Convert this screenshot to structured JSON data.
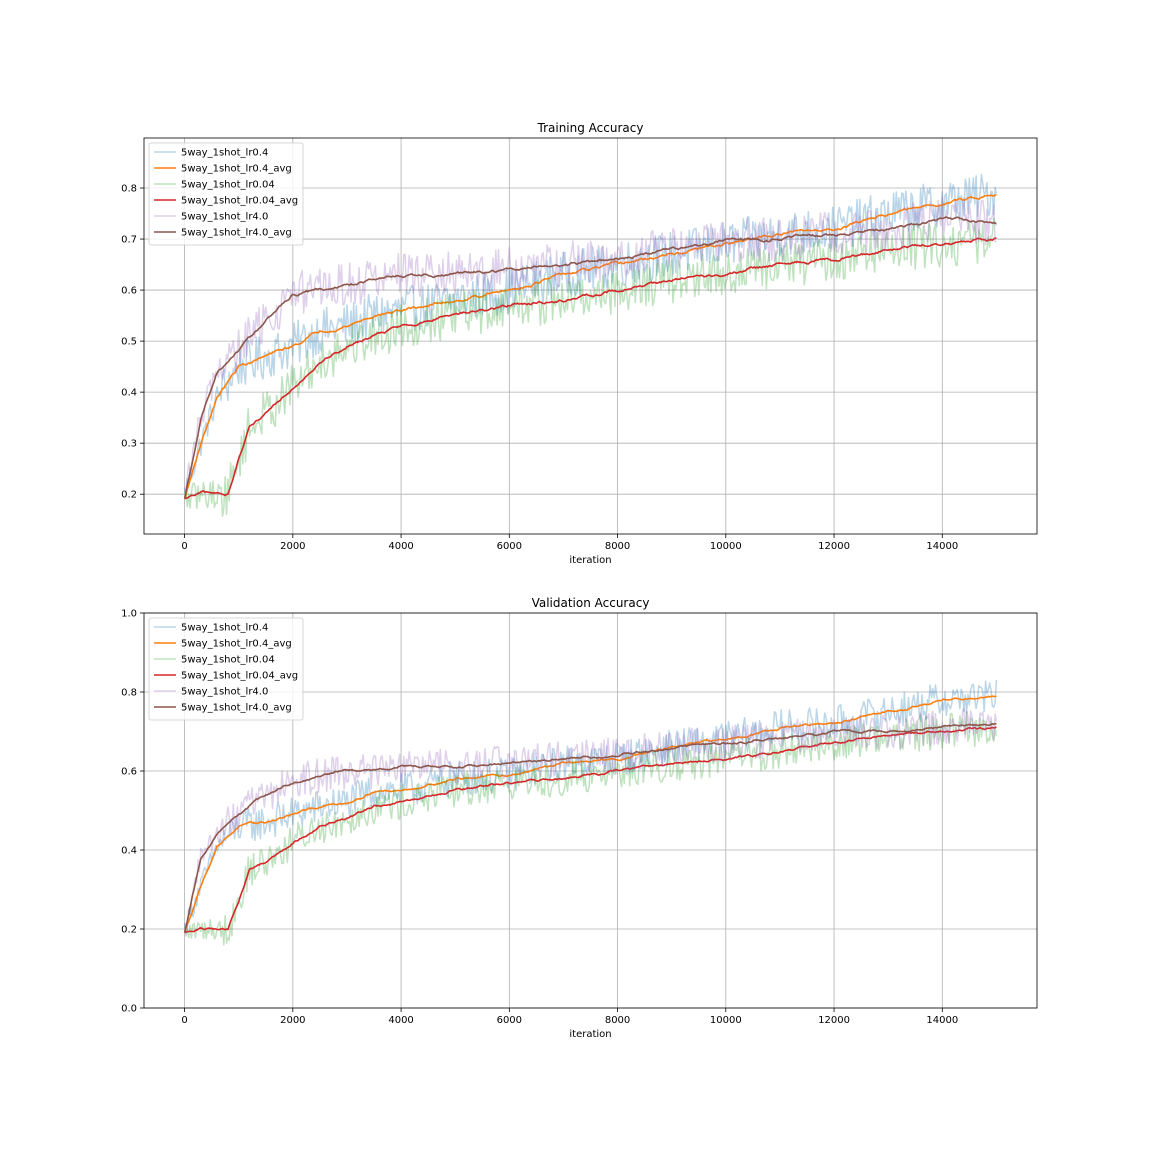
{
  "colors": {
    "lr0.4": "#1f77b4",
    "lr0.4_avg": "#ff7f0e",
    "lr0.04": "#2ca02c",
    "lr0.04_avg": "#d62728",
    "lr4.0": "#9467bd",
    "lr4.0_avg": "#8c564b"
  },
  "chart_data": [
    {
      "type": "line",
      "title": "Training Accuracy",
      "xlabel": "iteration",
      "ylabel": "",
      "xlim": [
        -750,
        15750
      ],
      "ylim": [
        0.122,
        0.898
      ],
      "xticks": [
        0,
        2000,
        4000,
        6000,
        8000,
        10000,
        12000,
        14000
      ],
      "xtick_labels": [
        "0",
        "2000",
        "4000",
        "6000",
        "8000",
        "10000",
        "12000",
        "14000"
      ],
      "yticks": [
        0.2,
        0.3,
        0.4,
        0.5,
        0.6,
        0.7,
        0.8
      ],
      "ytick_labels": [
        "0.2",
        "0.3",
        "0.4",
        "0.5",
        "0.6",
        "0.7",
        "0.8"
      ],
      "grid": true,
      "legend_position": "top-left",
      "series": [
        {
          "name": "5way_1shot_lr0.4",
          "color_key": "lr0.4",
          "alpha": 0.3,
          "noise": 0.045,
          "x": [
            0,
            300,
            600,
            1000,
            1500,
            2000,
            2500,
            3000,
            3500,
            4000,
            5000,
            6000,
            7000,
            8000,
            9000,
            10000,
            11000,
            12000,
            13000,
            14000,
            15000
          ],
          "y": [
            0.2,
            0.3,
            0.39,
            0.45,
            0.47,
            0.49,
            0.52,
            0.53,
            0.55,
            0.56,
            0.58,
            0.6,
            0.63,
            0.65,
            0.67,
            0.69,
            0.71,
            0.72,
            0.75,
            0.77,
            0.79
          ]
        },
        {
          "name": "5way_1shot_lr0.4_avg",
          "color_key": "lr0.4_avg",
          "alpha": 1.0,
          "noise": 0.006,
          "x": [
            0,
            300,
            600,
            1000,
            1500,
            2000,
            2500,
            3000,
            3500,
            4000,
            5000,
            6000,
            7000,
            8000,
            9000,
            10000,
            11000,
            12000,
            13000,
            14000,
            15000
          ],
          "y": [
            0.19,
            0.3,
            0.39,
            0.45,
            0.47,
            0.49,
            0.52,
            0.53,
            0.55,
            0.56,
            0.58,
            0.6,
            0.63,
            0.65,
            0.67,
            0.69,
            0.71,
            0.72,
            0.75,
            0.77,
            0.79
          ]
        },
        {
          "name": "5way_1shot_lr0.04",
          "color_key": "lr0.04",
          "alpha": 0.3,
          "noise": 0.045,
          "x": [
            0,
            300,
            600,
            800,
            1000,
            1200,
            1500,
            2000,
            2500,
            3000,
            3500,
            4000,
            5000,
            6000,
            7000,
            8000,
            9000,
            10000,
            11000,
            12000,
            13000,
            14000,
            15000
          ],
          "y": [
            0.19,
            0.2,
            0.2,
            0.2,
            0.27,
            0.33,
            0.36,
            0.41,
            0.46,
            0.49,
            0.51,
            0.53,
            0.55,
            0.57,
            0.58,
            0.6,
            0.62,
            0.63,
            0.65,
            0.66,
            0.68,
            0.69,
            0.7
          ]
        },
        {
          "name": "5way_1shot_lr0.04_avg",
          "color_key": "lr0.04_avg",
          "alpha": 1.0,
          "noise": 0.006,
          "x": [
            0,
            300,
            600,
            800,
            1000,
            1200,
            1500,
            2000,
            2500,
            3000,
            3500,
            4000,
            5000,
            6000,
            7000,
            8000,
            9000,
            10000,
            11000,
            12000,
            13000,
            14000,
            15000
          ],
          "y": [
            0.19,
            0.2,
            0.2,
            0.2,
            0.27,
            0.33,
            0.36,
            0.41,
            0.46,
            0.49,
            0.51,
            0.53,
            0.55,
            0.57,
            0.58,
            0.6,
            0.62,
            0.63,
            0.65,
            0.66,
            0.68,
            0.69,
            0.7
          ]
        },
        {
          "name": "5way_1shot_lr4.0",
          "color_key": "lr4.0",
          "alpha": 0.3,
          "noise": 0.045,
          "x": [
            0,
            300,
            600,
            1000,
            1500,
            2000,
            2500,
            3000,
            3500,
            4000,
            5000,
            6000,
            7000,
            8000,
            9000,
            10000,
            11000,
            12000,
            13000,
            14000,
            15000
          ],
          "y": [
            0.2,
            0.35,
            0.44,
            0.48,
            0.54,
            0.59,
            0.6,
            0.61,
            0.62,
            0.63,
            0.63,
            0.64,
            0.65,
            0.66,
            0.68,
            0.7,
            0.7,
            0.71,
            0.72,
            0.74,
            0.73
          ]
        },
        {
          "name": "5way_1shot_lr4.0_avg",
          "color_key": "lr4.0_avg",
          "alpha": 1.0,
          "noise": 0.006,
          "x": [
            0,
            300,
            600,
            1000,
            1500,
            2000,
            2500,
            3000,
            3500,
            4000,
            5000,
            6000,
            7000,
            8000,
            9000,
            10000,
            11000,
            12000,
            13000,
            14000,
            15000
          ],
          "y": [
            0.19,
            0.35,
            0.44,
            0.48,
            0.54,
            0.59,
            0.6,
            0.61,
            0.62,
            0.63,
            0.63,
            0.64,
            0.65,
            0.66,
            0.68,
            0.7,
            0.7,
            0.71,
            0.72,
            0.74,
            0.73
          ]
        }
      ]
    },
    {
      "type": "line",
      "title": "Validation Accuracy",
      "xlabel": "iteration",
      "ylabel": "",
      "xlim": [
        -750,
        15750
      ],
      "ylim": [
        0.0,
        1.0
      ],
      "xticks": [
        0,
        2000,
        4000,
        6000,
        8000,
        10000,
        12000,
        14000
      ],
      "xtick_labels": [
        "0",
        "2000",
        "4000",
        "6000",
        "8000",
        "10000",
        "12000",
        "14000"
      ],
      "yticks": [
        0.0,
        0.2,
        0.4,
        0.6,
        0.8,
        1.0
      ],
      "ytick_labels": [
        "0.0",
        "0.2",
        "0.4",
        "0.6",
        "0.8",
        "1.0"
      ],
      "grid": true,
      "legend_position": "top-left",
      "series": [
        {
          "name": "5way_1shot_lr0.4",
          "color_key": "lr0.4",
          "alpha": 0.3,
          "noise": 0.045,
          "x": [
            0,
            300,
            600,
            1000,
            1500,
            2000,
            2500,
            3000,
            3500,
            4000,
            5000,
            6000,
            7000,
            8000,
            9000,
            10000,
            11000,
            12000,
            13000,
            14000,
            15000
          ],
          "y": [
            0.2,
            0.31,
            0.41,
            0.46,
            0.47,
            0.49,
            0.51,
            0.52,
            0.55,
            0.55,
            0.58,
            0.59,
            0.62,
            0.63,
            0.66,
            0.68,
            0.71,
            0.72,
            0.75,
            0.78,
            0.79
          ]
        },
        {
          "name": "5way_1shot_lr0.4_avg",
          "color_key": "lr0.4_avg",
          "alpha": 1.0,
          "noise": 0.006,
          "x": [
            0,
            300,
            600,
            1000,
            1500,
            2000,
            2500,
            3000,
            3500,
            4000,
            5000,
            6000,
            7000,
            8000,
            9000,
            10000,
            11000,
            12000,
            13000,
            14000,
            15000
          ],
          "y": [
            0.19,
            0.31,
            0.41,
            0.46,
            0.47,
            0.49,
            0.51,
            0.52,
            0.55,
            0.55,
            0.58,
            0.59,
            0.62,
            0.63,
            0.66,
            0.68,
            0.71,
            0.72,
            0.75,
            0.78,
            0.79
          ]
        },
        {
          "name": "5way_1shot_lr0.04",
          "color_key": "lr0.04",
          "alpha": 0.3,
          "noise": 0.045,
          "x": [
            0,
            300,
            600,
            800,
            1000,
            1200,
            1500,
            2000,
            2500,
            3000,
            3500,
            4000,
            5000,
            6000,
            7000,
            8000,
            9000,
            10000,
            11000,
            12000,
            13000,
            14000,
            15000
          ],
          "y": [
            0.19,
            0.2,
            0.2,
            0.2,
            0.27,
            0.35,
            0.37,
            0.42,
            0.46,
            0.48,
            0.51,
            0.52,
            0.55,
            0.57,
            0.58,
            0.6,
            0.62,
            0.63,
            0.65,
            0.67,
            0.69,
            0.7,
            0.71
          ]
        },
        {
          "name": "5way_1shot_lr0.04_avg",
          "color_key": "lr0.04_avg",
          "alpha": 1.0,
          "noise": 0.006,
          "x": [
            0,
            300,
            600,
            800,
            1000,
            1200,
            1500,
            2000,
            2500,
            3000,
            3500,
            4000,
            5000,
            6000,
            7000,
            8000,
            9000,
            10000,
            11000,
            12000,
            13000,
            14000,
            15000
          ],
          "y": [
            0.19,
            0.2,
            0.2,
            0.2,
            0.27,
            0.35,
            0.37,
            0.42,
            0.46,
            0.48,
            0.51,
            0.52,
            0.55,
            0.57,
            0.58,
            0.6,
            0.62,
            0.63,
            0.65,
            0.67,
            0.69,
            0.7,
            0.71
          ]
        },
        {
          "name": "5way_1shot_lr4.0",
          "color_key": "lr4.0",
          "alpha": 0.3,
          "noise": 0.045,
          "x": [
            0,
            300,
            600,
            1000,
            1500,
            2000,
            2500,
            3000,
            3500,
            4000,
            5000,
            6000,
            7000,
            8000,
            9000,
            10000,
            11000,
            12000,
            13000,
            14000,
            15000
          ],
          "y": [
            0.2,
            0.38,
            0.44,
            0.49,
            0.54,
            0.57,
            0.59,
            0.6,
            0.6,
            0.61,
            0.61,
            0.62,
            0.63,
            0.64,
            0.66,
            0.67,
            0.68,
            0.7,
            0.7,
            0.71,
            0.72
          ]
        },
        {
          "name": "5way_1shot_lr4.0_avg",
          "color_key": "lr4.0_avg",
          "alpha": 1.0,
          "noise": 0.006,
          "x": [
            0,
            300,
            600,
            1000,
            1500,
            2000,
            2500,
            3000,
            3500,
            4000,
            5000,
            6000,
            7000,
            8000,
            9000,
            10000,
            11000,
            12000,
            13000,
            14000,
            15000
          ],
          "y": [
            0.19,
            0.38,
            0.44,
            0.49,
            0.54,
            0.57,
            0.59,
            0.6,
            0.6,
            0.61,
            0.61,
            0.62,
            0.63,
            0.64,
            0.66,
            0.67,
            0.68,
            0.7,
            0.7,
            0.71,
            0.72
          ]
        }
      ]
    }
  ]
}
